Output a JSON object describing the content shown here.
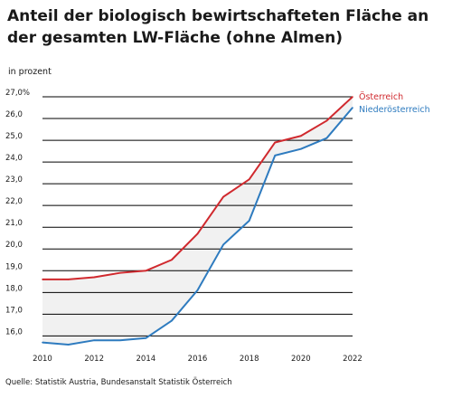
{
  "header": {
    "title_line1": "Anteil der biologisch bewirtschafteten Fläche an",
    "title_line2": "der gesamten LW-Fläche (ohne Almen)",
    "unit": "in prozent"
  },
  "footer": {
    "source": "Quelle: Statistik Austria, Bundesanstalt Statistik Österreich"
  },
  "colors": {
    "series_austria": "#d0292e",
    "series_lower_austria": "#2e7bbf",
    "band_fill": "#f1f1f1",
    "grid": "#000000"
  },
  "chart_data": {
    "type": "line",
    "title": "Anteil der biologisch bewirtschafteten Fläche an der gesamten LW-Fläche (ohne Almen)",
    "ylabel": "in prozent",
    "xlabel": "",
    "x": [
      2010,
      2011,
      2012,
      2013,
      2014,
      2015,
      2016,
      2017,
      2018,
      2019,
      2020,
      2021,
      2022
    ],
    "xlim": [
      2010,
      2022
    ],
    "ylim": [
      15.6,
      27.0
    ],
    "x_ticks": [
      "2010",
      "2012",
      "2014",
      "2016",
      "2018",
      "2020",
      "2022"
    ],
    "y_ticks": [
      "16,0",
      "17,0",
      "18,0",
      "19,0",
      "20,0",
      "21,0",
      "22,0",
      "23,0",
      "24,0",
      "25,0",
      "26,0",
      "27,0%"
    ],
    "grid": true,
    "shaded_area_between_series": true,
    "legend_position": "right, at line ends",
    "series": [
      {
        "name": "Österreich",
        "values": [
          18.6,
          18.6,
          18.7,
          18.9,
          19.0,
          19.5,
          20.7,
          22.4,
          23.2,
          24.9,
          25.2,
          25.9,
          27.0
        ]
      },
      {
        "name": "Niederösterreich",
        "values": [
          15.7,
          15.6,
          15.8,
          15.8,
          15.9,
          16.7,
          18.1,
          20.2,
          21.3,
          24.3,
          24.6,
          25.1,
          26.5
        ]
      }
    ]
  }
}
